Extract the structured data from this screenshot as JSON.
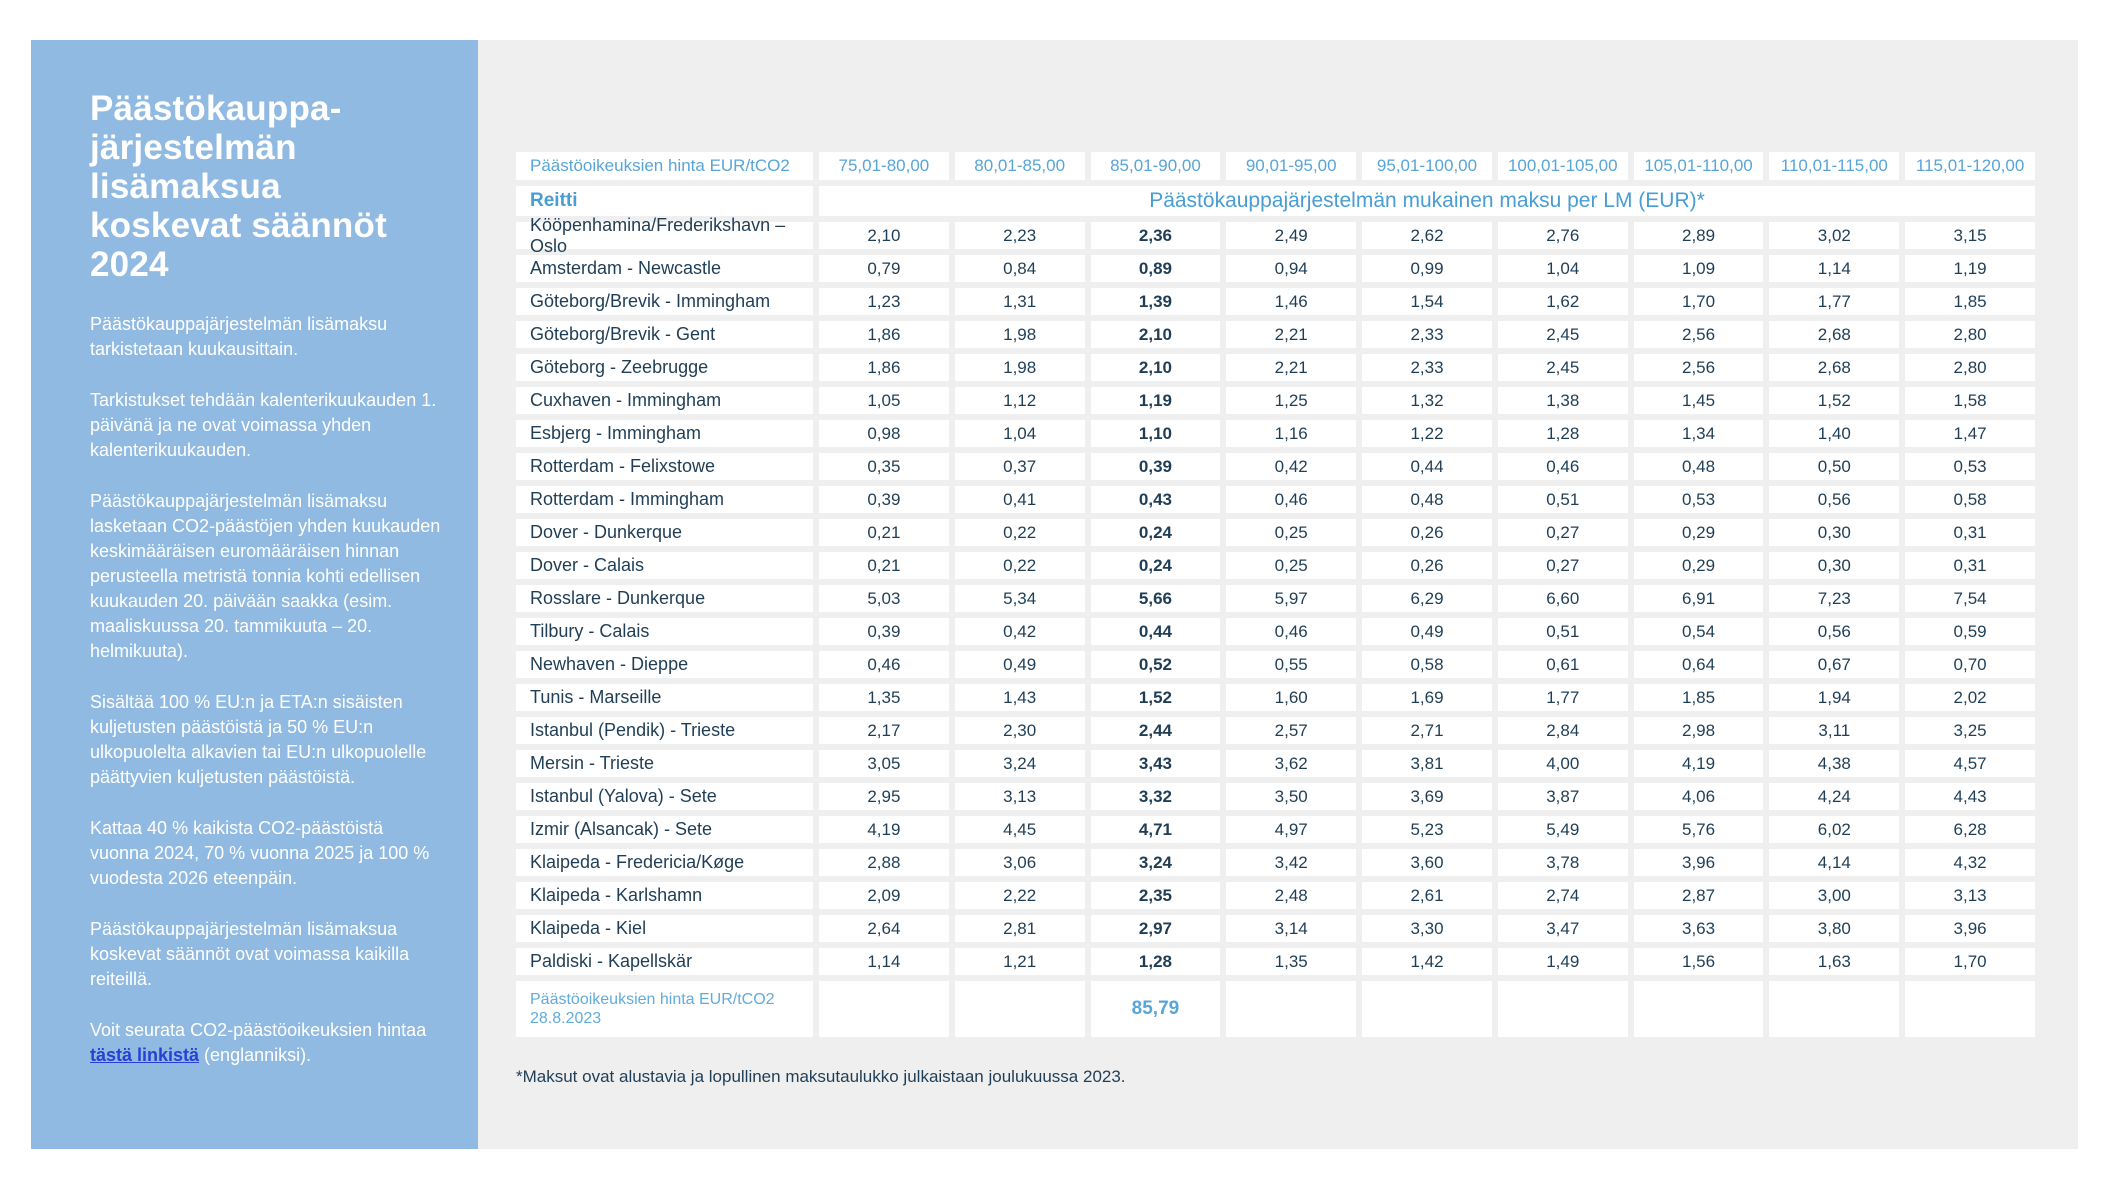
{
  "colors": {
    "sidebar_bg": "#90BAE1",
    "page_bg": "#FFFFFF",
    "content_bg": "#EFEFEF",
    "cell_bg": "#FFFFFF",
    "heading_text": "#FFFFFF",
    "body_text": "#FFFFFF",
    "link": "#2741D6",
    "range_text": "#58A5D8",
    "table_accent": "#479DD4",
    "footer_label": "#63ABDC",
    "value_text": "#1F3E56"
  },
  "sidebar": {
    "title": "Päästökauppa-\njärjestelmän\nlisämaksua\nkoskevat säännöt\n2024",
    "paragraphs": [
      "Päästökauppajärjestelmän lisämaksu tarkistetaan kuukausittain.",
      "Tarkistukset tehdään kalenterikuukauden 1. päivänä ja ne ovat voimassa yhden kalenterikuukauden.",
      "Päästökauppajärjestelmän lisämaksu lasketaan CO2-päästöjen yhden kuukauden keskimääräisen euromääräisen hinnan perusteella metristä tonnia kohti edellisen kuukauden 20. päivään saakka (esim. maaliskuussa 20. tammikuuta – 20. helmikuuta).",
      "Sisältää 100 % EU:n ja ETA:n sisäisten kuljetusten päästöistä ja 50 % EU:n ulkopuolelta alkavien tai EU:n ulkopuolelle päättyvien kuljetusten päästöistä.",
      "Kattaa 40 % kaikista CO2-päästöistä vuonna 2024, 70 % vuonna 2025 ja 100 % vuodesta 2026 eteenpäin.",
      "Päästökauppajärjestelmän lisämaksua koskevat säännöt ovat voimassa kaikilla reiteillä."
    ],
    "link_paragraph": {
      "before": "Voit seurata CO2-päästöoikeuksien hintaa ",
      "link": "tästä linkistä",
      "after": " (englanniksi)."
    }
  },
  "table": {
    "price_header_label": "Päästöoikeuksien hinta EUR/tCO2",
    "price_ranges": [
      "75,01-80,00",
      "80,01-85,00",
      "85,01-90,00",
      "90,01-95,00",
      "95,01-100,00",
      "100,01-105,00",
      "105,01-110,00",
      "110,01-115,00",
      "115,01-120,00"
    ],
    "route_header": "Reitti",
    "fee_header": "Päästökauppajärjestelmän mukainen maksu per LM (EUR)*",
    "emphasis_column_index": 2,
    "rows": [
      {
        "route": "Kööpenhamina/Frederikshavn – Oslo",
        "values": [
          "2,10",
          "2,23",
          "2,36",
          "2,49",
          "2,62",
          "2,76",
          "2,89",
          "3,02",
          "3,15"
        ]
      },
      {
        "route": "Amsterdam - Newcastle",
        "values": [
          "0,79",
          "0,84",
          "0,89",
          "0,94",
          "0,99",
          "1,04",
          "1,09",
          "1,14",
          "1,19"
        ]
      },
      {
        "route": "Göteborg/Brevik - Immingham",
        "values": [
          "1,23",
          "1,31",
          "1,39",
          "1,46",
          "1,54",
          "1,62",
          "1,70",
          "1,77",
          "1,85"
        ]
      },
      {
        "route": "Göteborg/Brevik - Gent",
        "values": [
          "1,86",
          "1,98",
          "2,10",
          "2,21",
          "2,33",
          "2,45",
          "2,56",
          "2,68",
          "2,80"
        ]
      },
      {
        "route": "Göteborg - Zeebrugge",
        "values": [
          "1,86",
          "1,98",
          "2,10",
          "2,21",
          "2,33",
          "2,45",
          "2,56",
          "2,68",
          "2,80"
        ]
      },
      {
        "route": "Cuxhaven - Immingham",
        "values": [
          "1,05",
          "1,12",
          "1,19",
          "1,25",
          "1,32",
          "1,38",
          "1,45",
          "1,52",
          "1,58"
        ]
      },
      {
        "route": "Esbjerg - Immingham",
        "values": [
          "0,98",
          "1,04",
          "1,10",
          "1,16",
          "1,22",
          "1,28",
          "1,34",
          "1,40",
          "1,47"
        ]
      },
      {
        "route": "Rotterdam - Felixstowe",
        "values": [
          "0,35",
          "0,37",
          "0,39",
          "0,42",
          "0,44",
          "0,46",
          "0,48",
          "0,50",
          "0,53"
        ]
      },
      {
        "route": "Rotterdam - Immingham",
        "values": [
          "0,39",
          "0,41",
          "0,43",
          "0,46",
          "0,48",
          "0,51",
          "0,53",
          "0,56",
          "0,58"
        ]
      },
      {
        "route": "Dover - Dunkerque",
        "values": [
          "0,21",
          "0,22",
          "0,24",
          "0,25",
          "0,26",
          "0,27",
          "0,29",
          "0,30",
          "0,31"
        ]
      },
      {
        "route": "Dover - Calais",
        "values": [
          "0,21",
          "0,22",
          "0,24",
          "0,25",
          "0,26",
          "0,27",
          "0,29",
          "0,30",
          "0,31"
        ]
      },
      {
        "route": "Rosslare - Dunkerque",
        "values": [
          "5,03",
          "5,34",
          "5,66",
          "5,97",
          "6,29",
          "6,60",
          "6,91",
          "7,23",
          "7,54"
        ]
      },
      {
        "route": "Tilbury - Calais",
        "values": [
          "0,39",
          "0,42",
          "0,44",
          "0,46",
          "0,49",
          "0,51",
          "0,54",
          "0,56",
          "0,59"
        ]
      },
      {
        "route": "Newhaven - Dieppe",
        "values": [
          "0,46",
          "0,49",
          "0,52",
          "0,55",
          "0,58",
          "0,61",
          "0,64",
          "0,67",
          "0,70"
        ]
      },
      {
        "route": "Tunis - Marseille",
        "values": [
          "1,35",
          "1,43",
          "1,52",
          "1,60",
          "1,69",
          "1,77",
          "1,85",
          "1,94",
          "2,02"
        ]
      },
      {
        "route": "Istanbul (Pendik) - Trieste",
        "values": [
          "2,17",
          "2,30",
          "2,44",
          "2,57",
          "2,71",
          "2,84",
          "2,98",
          "3,11",
          "3,25"
        ]
      },
      {
        "route": "Mersin - Trieste",
        "values": [
          "3,05",
          "3,24",
          "3,43",
          "3,62",
          "3,81",
          "4,00",
          "4,19",
          "4,38",
          "4,57"
        ]
      },
      {
        "route": "Istanbul (Yalova) - Sete",
        "values": [
          "2,95",
          "3,13",
          "3,32",
          "3,50",
          "3,69",
          "3,87",
          "4,06",
          "4,24",
          "4,43"
        ]
      },
      {
        "route": "Izmir (Alsancak) - Sete",
        "values": [
          "4,19",
          "4,45",
          "4,71",
          "4,97",
          "5,23",
          "5,49",
          "5,76",
          "6,02",
          "6,28"
        ]
      },
      {
        "route": "Klaipeda - Fredericia/Køge",
        "values": [
          "2,88",
          "3,06",
          "3,24",
          "3,42",
          "3,60",
          "3,78",
          "3,96",
          "4,14",
          "4,32"
        ]
      },
      {
        "route": "Klaipeda - Karlshamn",
        "values": [
          "2,09",
          "2,22",
          "2,35",
          "2,48",
          "2,61",
          "2,74",
          "2,87",
          "3,00",
          "3,13"
        ]
      },
      {
        "route": "Klaipeda - Kiel",
        "values": [
          "2,64",
          "2,81",
          "2,97",
          "3,14",
          "3,30",
          "3,47",
          "3,63",
          "3,80",
          "3,96"
        ]
      },
      {
        "route": "Paldiski - Kapellskär",
        "values": [
          "1,14",
          "1,21",
          "1,28",
          "1,35",
          "1,42",
          "1,49",
          "1,56",
          "1,63",
          "1,70"
        ]
      }
    ],
    "footer": {
      "label_line1": "Päästöoikeuksien hinta EUR/tCO2",
      "label_line2": "28.8.2023",
      "value": "85,79"
    },
    "footnote": "*Maksut ovat alustavia ja lopullinen maksutaulukko julkaistaan joulukuussa 2023."
  }
}
